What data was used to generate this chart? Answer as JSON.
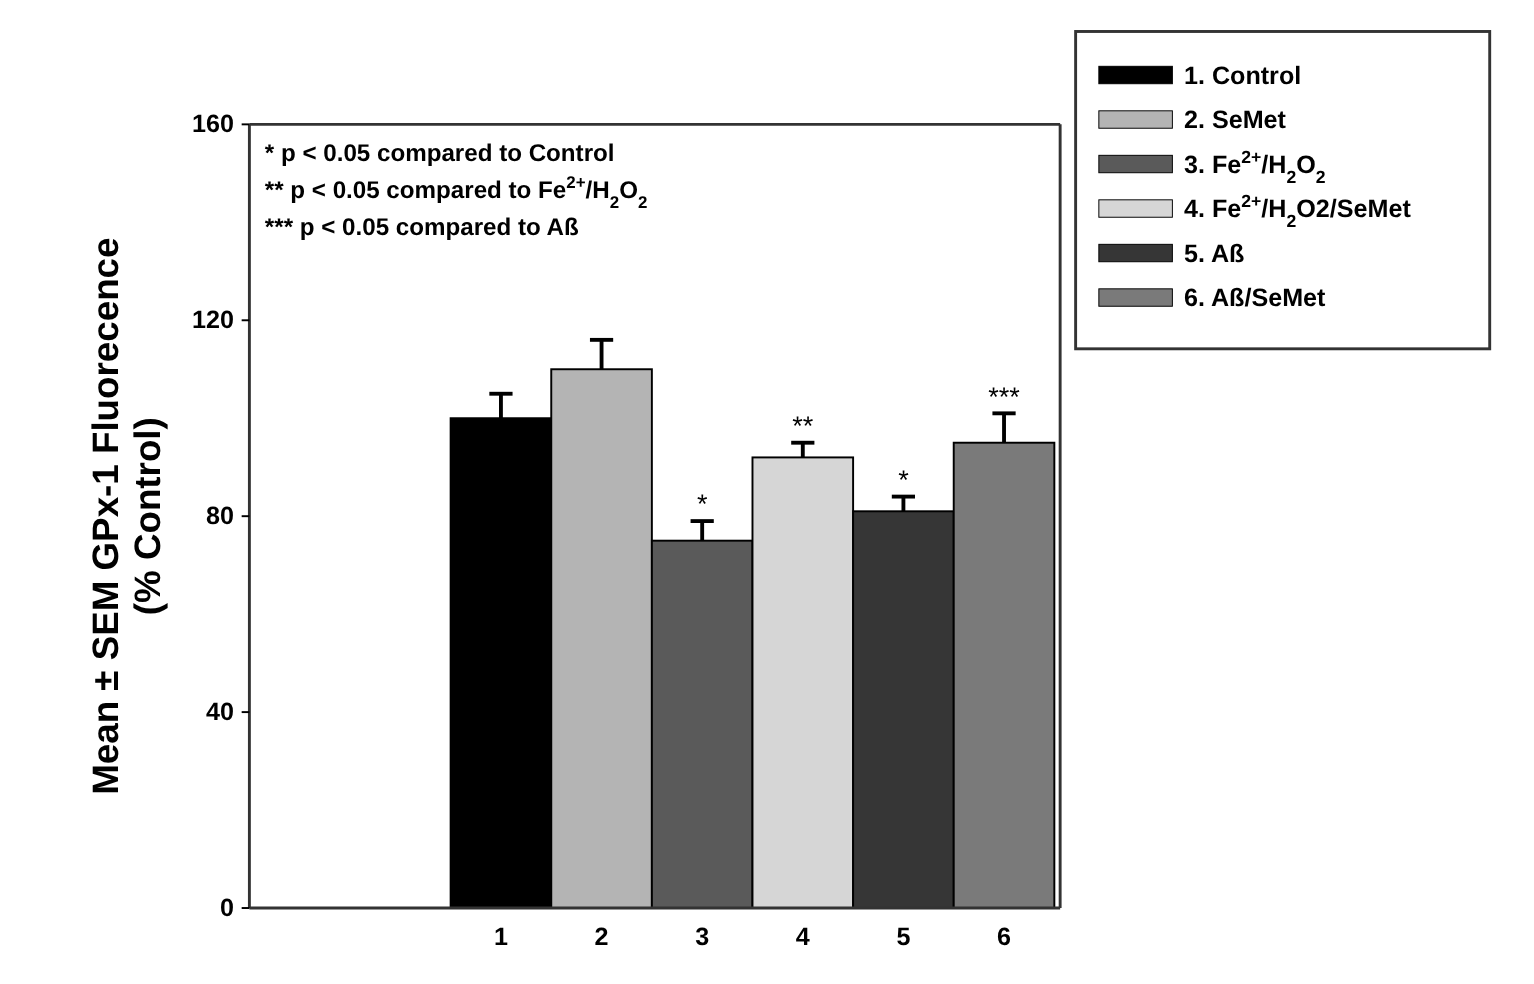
{
  "chart_data": {
    "type": "bar",
    "ylabel": "Mean ± SEM GPx-1 Fluorecence\n(% Control)",
    "categories": [
      null,
      null,
      "1",
      "2",
      "3",
      "4",
      "5",
      "6"
    ],
    "series": [
      {
        "name": "1. Control",
        "color": "#000000",
        "values": [
          null,
          null,
          100,
          null,
          null,
          null,
          null,
          null
        ],
        "errors": [
          null,
          null,
          5,
          null,
          null,
          null,
          null,
          null
        ]
      },
      {
        "name": "2. SeMet",
        "color": "#b4b4b4",
        "values": [
          null,
          null,
          null,
          110,
          null,
          null,
          null,
          null
        ],
        "errors": [
          null,
          null,
          null,
          6,
          null,
          null,
          null,
          null
        ]
      },
      {
        "name": "3. Fe$^{2+}$/H$_{2}$O$_{2}$",
        "color": "#5a5a5a",
        "values": [
          null,
          null,
          null,
          null,
          75,
          null,
          null,
          null
        ],
        "errors": [
          null,
          null,
          null,
          null,
          4,
          null,
          null,
          null
        ]
      },
      {
        "name": "4. Fe$^{2+}$/H$_{2}$O2/SeMet",
        "color": "#d6d6d6",
        "values": [
          null,
          null,
          null,
          null,
          null,
          92,
          null,
          null
        ],
        "errors": [
          null,
          null,
          null,
          null,
          null,
          3,
          null,
          null
        ]
      },
      {
        "name": "5. Aß",
        "color": "#363636",
        "values": [
          null,
          null,
          null,
          null,
          null,
          null,
          81,
          null
        ],
        "errors": [
          null,
          null,
          null,
          null,
          null,
          null,
          3,
          null
        ]
      },
      {
        "name": "6. Aß/SeMet",
        "color": "#7a7a7a",
        "values": [
          null,
          null,
          null,
          null,
          null,
          null,
          null,
          95
        ],
        "errors": [
          null,
          null,
          null,
          null,
          null,
          null,
          null,
          6
        ]
      }
    ],
    "ylim": [
      0,
      160
    ],
    "yticks": [
      0,
      40,
      80,
      120,
      160
    ],
    "legend": "top right",
    "annotations": [
      "* p < 0.05 compared to Control",
      "** p < 0.05 compared to Fe$^{2+}$/H$_{2}$O$_{2}$",
      "*** p < 0.05 compared to Aß",
      {
        "text": "*",
        "x": "3",
        "y": 79
      },
      {
        "text": "**",
        "x": "4",
        "y": 95
      },
      {
        "text": "*",
        "x": "5",
        "y": 84
      },
      {
        "text": "***",
        "x": "6",
        "y": 101
      }
    ]
  }
}
